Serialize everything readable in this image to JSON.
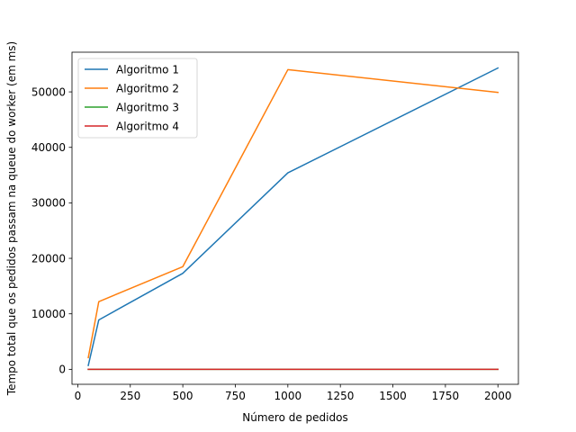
{
  "chart_data": {
    "type": "line",
    "title": "",
    "xlabel": "Número de pedidos",
    "ylabel": "Tempo total que os pedidos passam na queue do worker (em ms)",
    "xlim": [
      -27.5,
      2097.5
    ],
    "ylim": [
      -2700,
      57150
    ],
    "xticks": [
      0,
      250,
      500,
      750,
      1000,
      1250,
      1500,
      1750,
      2000
    ],
    "yticks": [
      0,
      10000,
      20000,
      30000,
      40000,
      50000
    ],
    "grid": false,
    "legend": "top-left",
    "x": [
      50,
      100,
      500,
      1000,
      2000
    ],
    "series": [
      {
        "name": "Algoritmo 1",
        "color": "#1f77b4",
        "values": [
          700,
          8900,
          17300,
          35400,
          54300
        ]
      },
      {
        "name": "Algoritmo 2",
        "color": "#ff7f0e",
        "values": [
          2100,
          12200,
          18500,
          54000,
          49900
        ]
      },
      {
        "name": "Algoritmo 3",
        "color": "#2ca02c",
        "values": [
          0,
          0,
          0,
          0,
          0
        ]
      },
      {
        "name": "Algoritmo 4",
        "color": "#d62728",
        "values": [
          0,
          0,
          0,
          0,
          0
        ]
      }
    ]
  }
}
